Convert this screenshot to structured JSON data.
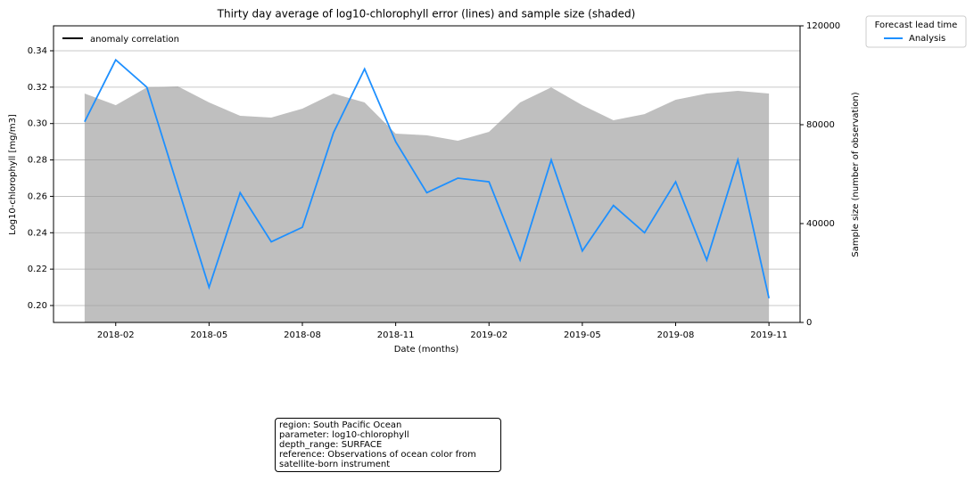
{
  "chart_data": {
    "type": "line",
    "title": "Thirty day average of log10-chlorophyll error (lines) and sample size (shaded)",
    "x_label": "Date (months)",
    "y_label": "Log10-chlorophyll [mg/m3]",
    "y2_label": "Sample size (number of observation)",
    "x": [
      "2018-01",
      "2018-02",
      "2018-03",
      "2018-04",
      "2018-05",
      "2018-06",
      "2018-07",
      "2018-08",
      "2018-09",
      "2018-10",
      "2018-11",
      "2018-12",
      "2019-01",
      "2019-02",
      "2019-03",
      "2019-04",
      "2019-05",
      "2019-06",
      "2019-07",
      "2019-08",
      "2019-09",
      "2019-10",
      "2019-11"
    ],
    "series": [
      {
        "name": "Analysis",
        "color": "#1e90ff",
        "values": [
          0.301,
          0.335,
          0.32,
          0.265,
          0.21,
          0.262,
          0.235,
          0.243,
          0.295,
          0.33,
          0.29,
          0.262,
          0.27,
          0.268,
          0.225,
          0.28,
          0.23,
          0.255,
          0.24,
          0.268,
          0.225,
          0.28,
          0.204
        ]
      },
      {
        "type": "area",
        "axis": "y2",
        "color": "#bfbfbf",
        "values": [
          92600,
          87900,
          95100,
          95500,
          89000,
          83600,
          82900,
          86500,
          92600,
          89000,
          76400,
          75700,
          73500,
          77100,
          89000,
          95100,
          87900,
          81800,
          84300,
          90100,
          92600,
          93700,
          92600
        ]
      }
    ],
    "xlim": [
      "2017-12",
      "2019-12"
    ],
    "xticks": [
      "2018-02",
      "2018-05",
      "2018-08",
      "2018-11",
      "2019-02",
      "2019-05",
      "2019-08",
      "2019-11"
    ],
    "ylim": [
      0.1907,
      0.3537
    ],
    "yticks": [
      {
        "value": 0.2,
        "label": "0.20"
      },
      {
        "value": 0.22,
        "label": "0.22"
      },
      {
        "value": 0.24,
        "label": "0.24"
      },
      {
        "value": 0.26,
        "label": "0.26"
      },
      {
        "value": 0.28,
        "label": "0.28"
      },
      {
        "value": 0.3,
        "label": "0.30"
      },
      {
        "value": 0.32,
        "label": "0.32"
      },
      {
        "value": 0.34,
        "label": "0.34"
      }
    ],
    "y2lim": [
      0,
      120000
    ],
    "y2ticks": [
      0,
      40000,
      80000,
      120000
    ],
    "grid": true,
    "inner_legend": {
      "name": "anomaly correlation",
      "color": "#000000"
    },
    "legend_title": "Forecast lead time",
    "legend": "outside-right",
    "note_lines": [
      "region: South Pacific Ocean",
      "parameter: log10-chlorophyll",
      "depth_range: SURFACE",
      "reference: Observations of ocean color from satellite-born instrument"
    ]
  }
}
